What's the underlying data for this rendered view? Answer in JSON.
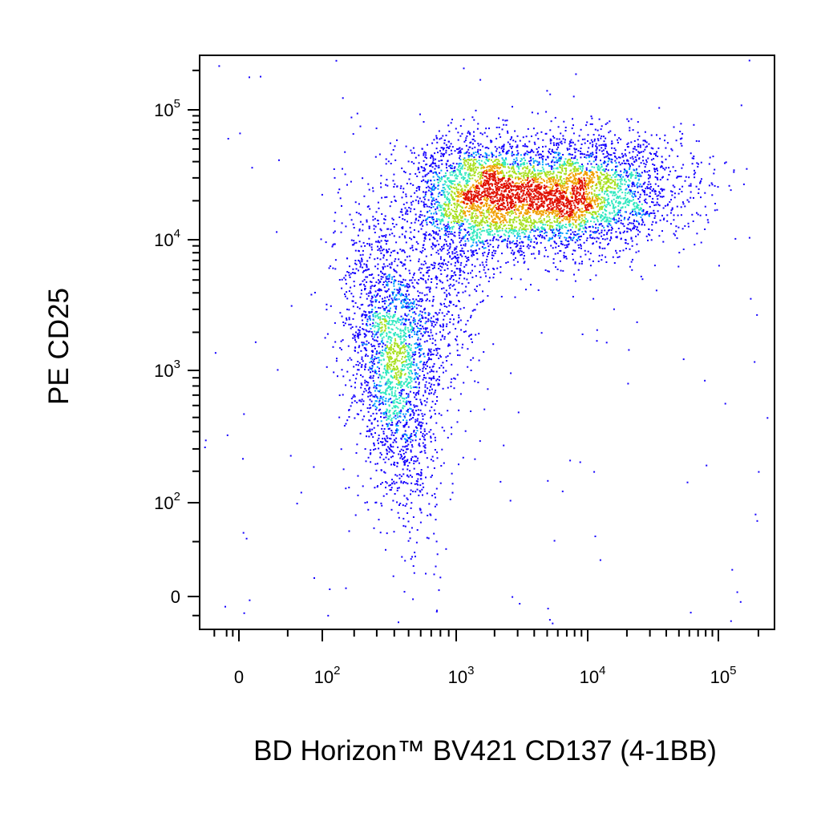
{
  "chart_data": {
    "type": "scatter",
    "subtype": "flow-cytometry-density-dot-plot",
    "xlabel": "BD Horizon™ BV421 CD137 (4-1BB)",
    "ylabel": "PE CD25",
    "x_scale": "biexponential",
    "y_scale": "biexponential",
    "xlim": [
      -300,
      250000
    ],
    "ylim": [
      -80,
      250000
    ],
    "x_ticks": [
      {
        "value": 0,
        "label": "0"
      },
      {
        "value": 100,
        "base": "10",
        "exp": "2"
      },
      {
        "value": 1000,
        "base": "10",
        "exp": "3"
      },
      {
        "value": 10000,
        "base": "10",
        "exp": "4"
      },
      {
        "value": 100000,
        "base": "10",
        "exp": "5"
      }
    ],
    "y_ticks": [
      {
        "value": 0,
        "label": "0"
      },
      {
        "value": 100,
        "base": "10",
        "exp": "2"
      },
      {
        "value": 1000,
        "base": "10",
        "exp": "3"
      },
      {
        "value": 10000,
        "base": "10",
        "exp": "4"
      },
      {
        "value": 100000,
        "base": "10",
        "exp": "5"
      }
    ],
    "density_colors": [
      "#1400ff",
      "#00a0ff",
      "#30e8c0",
      "#a8e020",
      "#f0a000",
      "#e01000"
    ],
    "populations": [
      {
        "description": "CD137- CD25 low/intermediate",
        "center": {
          "x": 380,
          "y": 1200
        },
        "relative_size": 0.3
      },
      {
        "description": "CD137+ CD25 high",
        "center": {
          "x": 6000,
          "y": 22000
        },
        "relative_size": 0.55
      },
      {
        "description": "CD137 intermediate CD25 high",
        "center": {
          "x": 1200,
          "y": 25000
        },
        "relative_size": 0.15
      }
    ],
    "grid": false,
    "legend": "none"
  }
}
